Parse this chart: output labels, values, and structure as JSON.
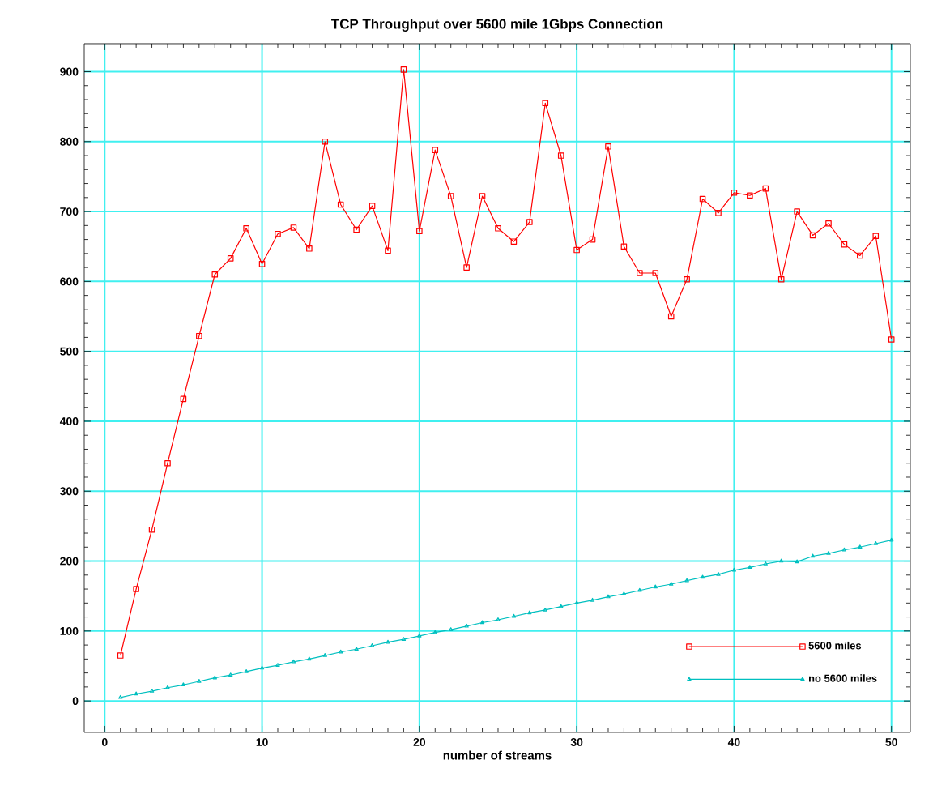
{
  "chart_data": {
    "type": "line",
    "title": "TCP Throughput over 5600 mile 1Gbps Connection",
    "xlabel": "number of streams",
    "x": [
      1,
      2,
      3,
      4,
      5,
      6,
      7,
      8,
      9,
      10,
      11,
      12,
      13,
      14,
      15,
      16,
      17,
      18,
      19,
      20,
      21,
      22,
      23,
      24,
      25,
      26,
      27,
      28,
      29,
      30,
      31,
      32,
      33,
      34,
      35,
      36,
      37,
      38,
      39,
      40,
      41,
      42,
      43,
      44,
      45,
      46,
      47,
      48,
      49,
      50
    ],
    "series": [
      {
        "name": "5600 miles",
        "color": "#ff0000",
        "marker": "square",
        "values": [
          65,
          160,
          245,
          340,
          432,
          522,
          610,
          633,
          676,
          625,
          668,
          677,
          647,
          800,
          710,
          674,
          708,
          644,
          903,
          672,
          788,
          722,
          620,
          722,
          676,
          657,
          685,
          855,
          780,
          645,
          660,
          793,
          650,
          612,
          612,
          550,
          603,
          718,
          698,
          727,
          723,
          733,
          603,
          700,
          666,
          683,
          653,
          637,
          665,
          517
        ]
      },
      {
        "name": "no 5600 miles",
        "color": "#00bfbf",
        "marker": "triangle",
        "values": [
          5,
          10,
          14,
          19,
          23,
          28,
          33,
          37,
          42,
          47,
          51,
          56,
          60,
          65,
          70,
          74,
          79,
          84,
          88,
          93,
          98,
          102,
          107,
          112,
          116,
          121,
          126,
          130,
          135,
          140,
          144,
          149,
          153,
          158,
          163,
          167,
          172,
          177,
          181,
          187,
          191,
          196,
          200,
          199,
          207,
          211,
          216,
          220,
          225,
          230
        ]
      }
    ],
    "xlim": [
      -1.3,
      51.2
    ],
    "ylim": [
      -45,
      940
    ],
    "xticks": [
      0,
      10,
      20,
      30,
      40,
      50
    ],
    "yticks": [
      0,
      100,
      200,
      300,
      400,
      500,
      600,
      700,
      800,
      900
    ],
    "grid": true,
    "legend": "bottom right",
    "line_style": "solid"
  }
}
